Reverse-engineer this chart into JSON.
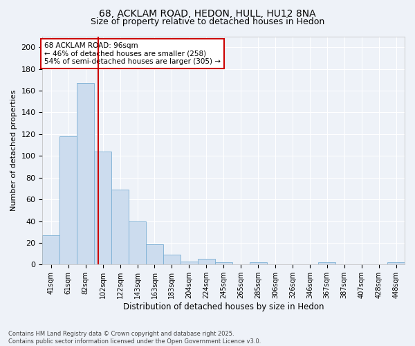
{
  "title1": "68, ACKLAM ROAD, HEDON, HULL, HU12 8NA",
  "title2": "Size of property relative to detached houses in Hedon",
  "xlabel": "Distribution of detached houses by size in Hedon",
  "ylabel": "Number of detached properties",
  "categories": [
    "41sqm",
    "61sqm",
    "82sqm",
    "102sqm",
    "122sqm",
    "143sqm",
    "163sqm",
    "183sqm",
    "204sqm",
    "224sqm",
    "245sqm",
    "265sqm",
    "285sqm",
    "306sqm",
    "326sqm",
    "346sqm",
    "367sqm",
    "387sqm",
    "407sqm",
    "428sqm",
    "448sqm"
  ],
  "values": [
    27,
    118,
    167,
    104,
    69,
    40,
    19,
    9,
    3,
    5,
    2,
    0,
    2,
    0,
    0,
    0,
    2,
    0,
    0,
    0,
    2
  ],
  "bar_color": "#ccdcee",
  "bar_edge_color": "#7bafd4",
  "red_line_index": 2.72,
  "annotation_text": "68 ACKLAM ROAD: 96sqm\n← 46% of detached houses are smaller (258)\n54% of semi-detached houses are larger (305) →",
  "annotation_box_color": "#ffffff",
  "annotation_box_edge_color": "#cc0000",
  "ylim": [
    0,
    210
  ],
  "yticks": [
    0,
    20,
    40,
    60,
    80,
    100,
    120,
    140,
    160,
    180,
    200
  ],
  "footer": "Contains HM Land Registry data © Crown copyright and database right 2025.\nContains public sector information licensed under the Open Government Licence v3.0.",
  "bg_color": "#eef2f8",
  "grid_color": "#ffffff",
  "title1_fontsize": 10,
  "title2_fontsize": 9,
  "annotation_fontsize": 7.5,
  "xlabel_fontsize": 8.5,
  "ylabel_fontsize": 8,
  "tick_fontsize": 7,
  "footer_fontsize": 6
}
